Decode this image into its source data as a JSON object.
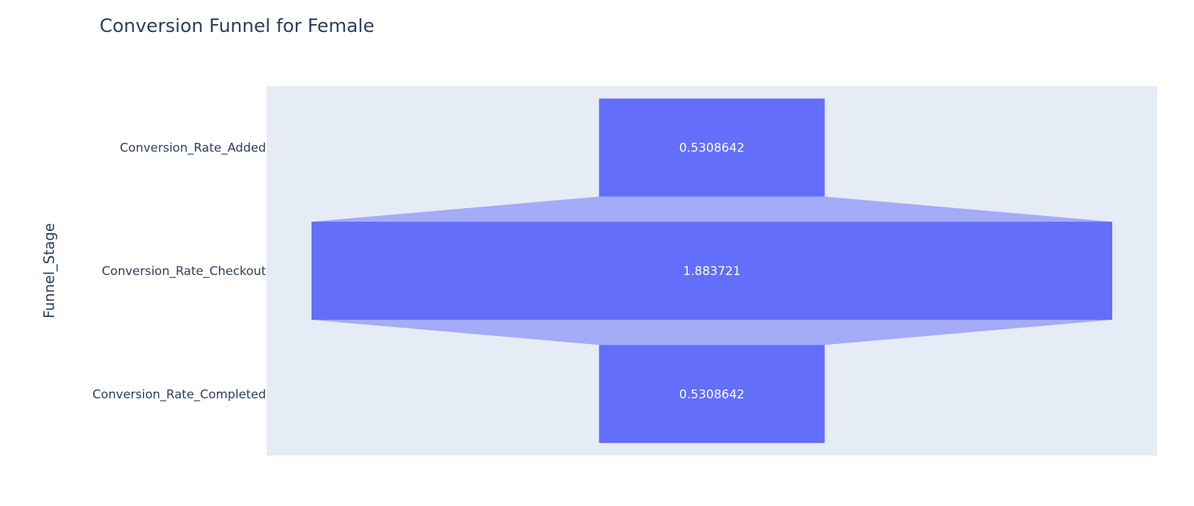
{
  "chart_data": {
    "type": "funnel",
    "title": "Conversion Funnel for Female",
    "ylabel": "Funnel_Stage",
    "xlabel": "",
    "categories": [
      "Conversion_Rate_Added",
      "Conversion_Rate_Checkout",
      "Conversion_Rate_Completed"
    ],
    "values": [
      0.5308642,
      1.883721,
      0.5308642
    ],
    "value_labels": [
      "0.5308642",
      "1.883721",
      "0.5308642"
    ],
    "grid": false,
    "legend": "none"
  },
  "colors": {
    "bar": "#636efa",
    "connector": "#a4abf7",
    "plot_background": "#e5ecf6",
    "text": "#2a3f5f",
    "label_text": "#ffffff"
  }
}
